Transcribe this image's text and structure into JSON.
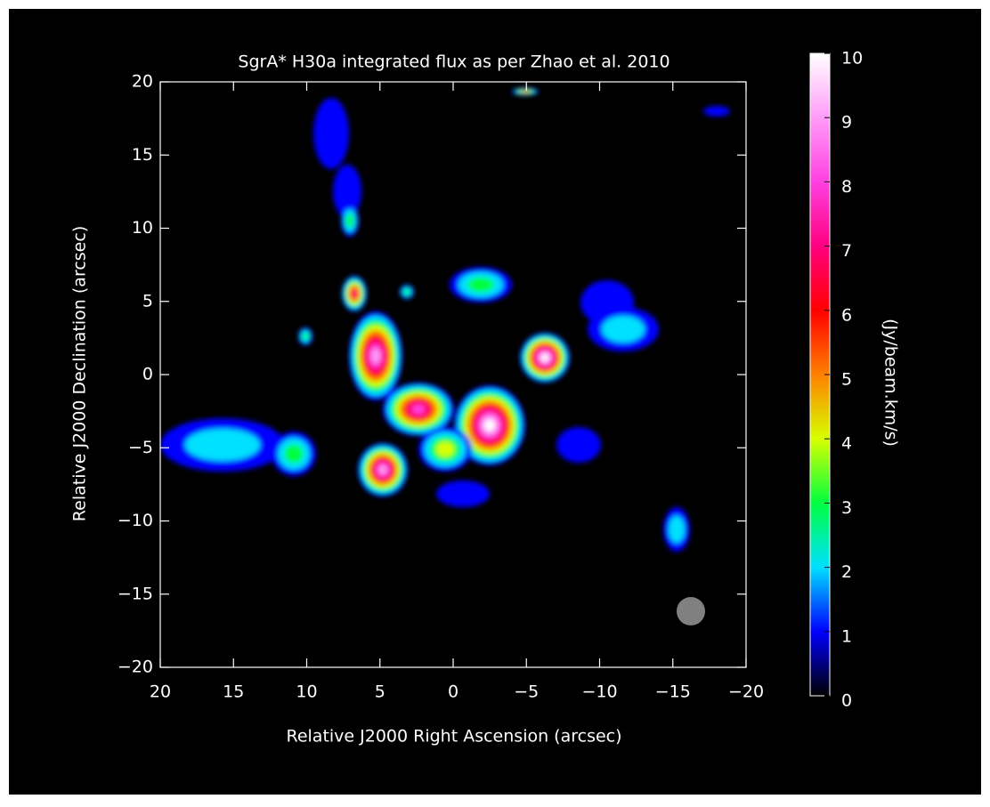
{
  "chart_data": {
    "type": "image",
    "title": "SgrA* H30a integrated flux as per Zhao et al. 2010",
    "xlabel": "Relative J2000 Right Ascension (arcsec)",
    "ylabel": "Relative J2000 Declination (arcsec)",
    "xlim": [
      20,
      -20
    ],
    "ylim": [
      -20,
      20
    ],
    "xticks": [
      20,
      15,
      10,
      5,
      0,
      {
        "value": -5,
        "label": "−5"
      },
      {
        "value": -10,
        "label": "−10"
      },
      {
        "value": -15,
        "label": "−15"
      },
      {
        "value": -20,
        "label": "−20"
      }
    ],
    "yticks": [
      {
        "value": -20,
        "label": "−20"
      },
      {
        "value": -15,
        "label": "−15"
      },
      {
        "value": -10,
        "label": "−10"
      },
      {
        "value": -5,
        "label": "−5"
      },
      0,
      5,
      10,
      15,
      20
    ],
    "colorbar": {
      "label": "(Jy/beam.km/s)",
      "lim": [
        0,
        10
      ],
      "ticks": [
        0,
        1,
        2,
        3,
        4,
        5,
        6,
        7,
        8,
        9,
        10
      ],
      "colors": [
        "#000000",
        "#0000ff",
        "#00e0ff",
        "#00ff40",
        "#d8ff00",
        "#ff8000",
        "#ff0000",
        "#ff0080",
        "#ff40e0",
        "#ff9cf8",
        "#ffffff"
      ]
    }
  }
}
